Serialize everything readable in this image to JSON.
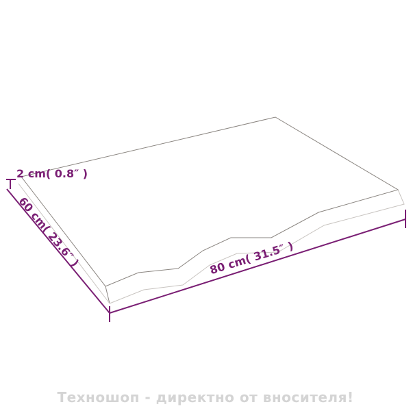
{
  "dimensions": {
    "thickness": "2 cm( 0.8″ )",
    "depth": "60 cm( 23.6″ )",
    "width": "80 cm( 31.5″ )"
  },
  "colors": {
    "dimension": "#7a1f74",
    "outline": "#8a8580",
    "footer": "#d4d4d4"
  },
  "footer": {
    "text": "Техношоп - директно от вносителя!"
  }
}
